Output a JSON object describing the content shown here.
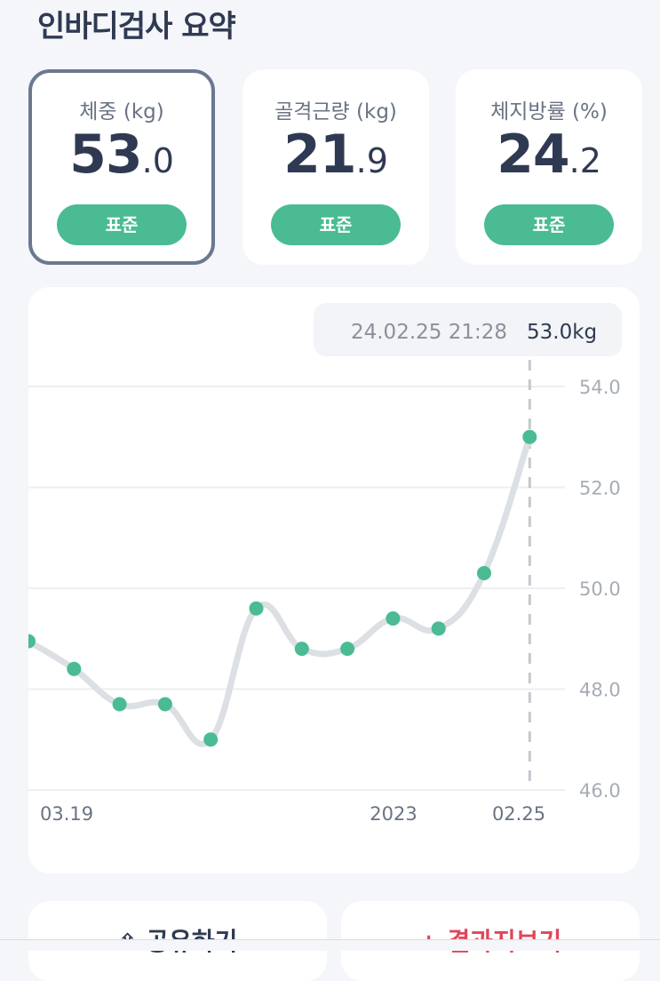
{
  "title": "인바디검사 요약",
  "metrics": [
    {
      "label": "체중 (kg)",
      "int": "53",
      "dec": ".0",
      "status": "표준",
      "selected": true
    },
    {
      "label": "골격근량 (kg)",
      "int": "21",
      "dec": ".9",
      "status": "표준",
      "selected": false
    },
    {
      "label": "체지방률 (%)",
      "int": "24",
      "dec": ".2",
      "status": "표준",
      "selected": false
    }
  ],
  "tooltip": {
    "datetime": "24.02.25 21:28",
    "value": "53.0kg"
  },
  "chart_data": {
    "type": "line",
    "y_ticks": [
      "54.0",
      "52.0",
      "50.0",
      "48.0",
      "46.0"
    ],
    "ylim": [
      46,
      54
    ],
    "x_labels": [
      "03.19",
      "2023",
      "02.25"
    ],
    "values": [
      48.95,
      48.4,
      47.7,
      47.7,
      47.0,
      49.6,
      48.8,
      48.8,
      49.4,
      49.2,
      50.3,
      53.0
    ],
    "highlight_index": 11,
    "colors": {
      "line": "#dcdfe4",
      "point": "#4abb92",
      "grid": "#eceef1",
      "dash": "#c4c8cf",
      "tick": "#a6acb6"
    }
  },
  "actions": {
    "share": {
      "icon": "share-icon",
      "label": "공유하기"
    },
    "report": {
      "icon": "plus-icon",
      "label": "결과지보기"
    }
  }
}
